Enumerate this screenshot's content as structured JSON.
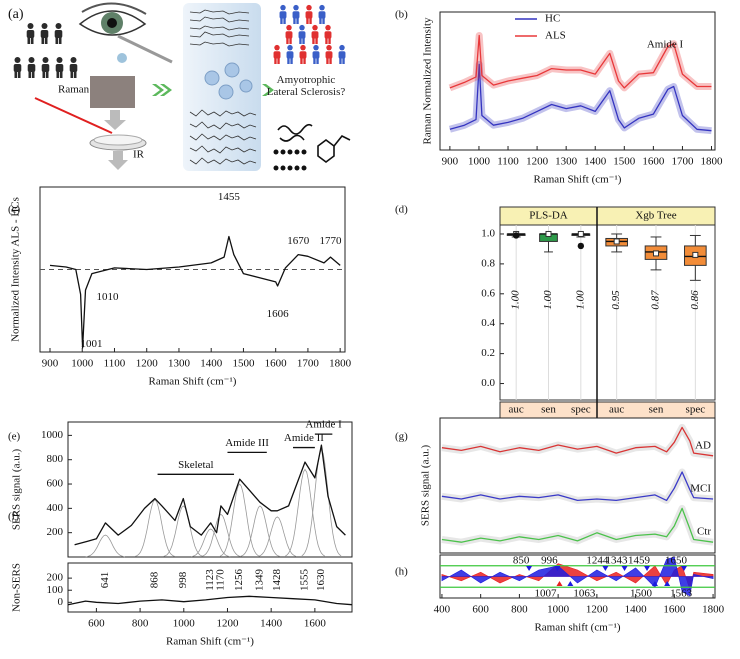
{
  "figure_a": {
    "panel_label": "(a)",
    "raman": "Raman",
    "ir": "IR",
    "question": "Amyotrophic Lateral Sclerosis?"
  },
  "chart_data": [
    {
      "type": "line",
      "panel_label": "(b)",
      "y_label": "Raman Normalized Intensity",
      "x_label": "Raman Shift (cm⁻¹)",
      "x": [
        900,
        950,
        990,
        1001,
        1010,
        1050,
        1100,
        1150,
        1200,
        1250,
        1300,
        1350,
        1400,
        1450,
        1480,
        1500,
        1550,
        1600,
        1650,
        1670,
        1700,
        1750,
        1800
      ],
      "series": [
        {
          "name": "HC",
          "color": "#3434c0",
          "values": [
            1.5,
            1.8,
            2.2,
            6.2,
            2.5,
            1.8,
            2.0,
            2.3,
            2.8,
            3.3,
            3.0,
            3.2,
            2.8,
            4.3,
            2.2,
            1.6,
            2.3,
            2.6,
            4.4,
            4.6,
            2.5,
            1.5,
            1.4
          ]
        },
        {
          "name": "ALS",
          "color": "#e8383a",
          "values": [
            4.5,
            4.9,
            5.3,
            8.3,
            5.4,
            4.7,
            5.0,
            5.2,
            5.4,
            5.9,
            5.8,
            5.8,
            5.5,
            7.0,
            5.0,
            4.5,
            5.5,
            5.6,
            7.5,
            7.7,
            5.5,
            4.6,
            4.6
          ]
        }
      ],
      "xlim": [
        866,
        1812
      ],
      "ylim": [
        0,
        10
      ],
      "xticks": [
        900,
        1000,
        1100,
        1200,
        1300,
        1400,
        1500,
        1600,
        1700,
        1800
      ],
      "legend": "upper left",
      "band": true,
      "annotations": [
        {
          "text": "Amide I",
          "x": 1640,
          "y": 7.6
        }
      ]
    },
    {
      "type": "line",
      "panel_label": "(c)",
      "y_label": "Normalized Intensity ALS - HCs",
      "x_label": "Raman Shift (cm⁻¹)",
      "x": [
        900,
        950,
        980,
        995,
        1001,
        1010,
        1030,
        1100,
        1200,
        1300,
        1400,
        1440,
        1455,
        1470,
        1500,
        1550,
        1600,
        1606,
        1630,
        1670,
        1700,
        1750,
        1770,
        1800
      ],
      "values": [
        0.5,
        0.3,
        0,
        -3,
        -9.5,
        -2.5,
        -0.5,
        0.2,
        0,
        0.3,
        0.8,
        1.5,
        4.0,
        1.8,
        -0.5,
        -1.0,
        -1.5,
        -2.0,
        0.2,
        1.8,
        1.6,
        0.8,
        1.5,
        0.5
      ],
      "color": "#111111",
      "xlim": [
        869,
        1815
      ],
      "ylim": [
        -10,
        10
      ],
      "xticks": [
        900,
        1000,
        1100,
        1200,
        1300,
        1400,
        1500,
        1600,
        1700,
        1800
      ],
      "reference_line": 0,
      "labels": [
        1455,
        1670,
        1770,
        1010,
        1606,
        1001
      ]
    },
    {
      "type": "box",
      "panel_label": "(d)",
      "ylim": [
        -0.11,
        1.06
      ],
      "yticks": [
        {
          "value": 0,
          "label": "0.0"
        },
        0.2,
        0.4,
        0.6,
        0.8,
        {
          "value": 1,
          "label": "1.0"
        }
      ],
      "groups": [
        {
          "name": "PLS-DA",
          "categories": [
            "auc",
            "sen",
            "spec"
          ],
          "values": [
            1.0,
            1.0,
            1.0
          ],
          "value_labels": [
            "1.00",
            "1.00",
            "1.00"
          ],
          "medians": [
            1.0,
            1.0,
            1.0
          ],
          "q1": [
            0.99,
            0.95,
            0.99
          ],
          "q3": [
            1.0,
            1.0,
            1.0
          ],
          "whisker_low": [
            0.98,
            0.88,
            0.98
          ],
          "whisker_high": [
            1.0,
            1.0,
            1.0
          ],
          "outliers": [
            [
              0.99
            ],
            [],
            [
              0.92
            ]
          ],
          "colors": [
            "#1a1a1a",
            "#2e9a4a",
            "#1a1a1a"
          ]
        },
        {
          "name": "Xgb Tree",
          "categories": [
            "auc",
            "sen",
            "spec"
          ],
          "values": [
            0.95,
            0.87,
            0.86
          ],
          "value_labels": [
            "0.95",
            "0.87",
            "0.86"
          ],
          "medians": [
            0.95,
            0.88,
            0.85
          ],
          "q1": [
            0.92,
            0.83,
            0.79
          ],
          "q3": [
            0.97,
            0.92,
            0.92
          ],
          "whisker_low": [
            0.88,
            0.76,
            0.69
          ],
          "whisker_high": [
            1.0,
            0.98,
            0.99
          ],
          "outliers": [
            [],
            [],
            []
          ],
          "colors": [
            "#f28c38",
            "#f28c38",
            "#f28c38"
          ]
        }
      ]
    },
    {
      "type": "line",
      "panel_label": "(e)",
      "y_label": "SERS signal (a.u.)",
      "x": [
        500,
        560,
        600,
        641,
        700,
        760,
        820,
        868,
        900,
        960,
        998,
        1030,
        1080,
        1123,
        1150,
        1170,
        1200,
        1256,
        1300,
        1349,
        1400,
        1428,
        1480,
        1555,
        1600,
        1630,
        1660,
        1700,
        1740
      ],
      "values": [
        100,
        130,
        150,
        280,
        180,
        260,
        400,
        480,
        420,
        300,
        480,
        250,
        180,
        280,
        200,
        420,
        350,
        640,
        550,
        450,
        380,
        380,
        420,
        780,
        650,
        920,
        500,
        250,
        180
      ],
      "color": "#111111",
      "xlim": [
        470,
        1770
      ],
      "ylim": [
        0,
        1110
      ],
      "yticks": [
        200,
        400,
        600,
        800,
        1000
      ],
      "peaks": [
        641,
        868,
        998,
        1123,
        1170,
        1256,
        1349,
        1428,
        1555,
        1630
      ],
      "component_heights": [
        180,
        470,
        420,
        230,
        350,
        600,
        420,
        330,
        720,
        880
      ],
      "component_width": 30,
      "regions": [
        {
          "label": "Skeletal",
          "start": 880,
          "end": 1230,
          "level": 680
        },
        {
          "label": "Amide III",
          "start": 1200,
          "end": 1380,
          "level": 860
        },
        {
          "label": "Amide II",
          "start": 1500,
          "end": 1600,
          "level": 900
        },
        {
          "label": "Amide I",
          "start": 1600,
          "end": 1680,
          "level": 1010
        }
      ]
    },
    {
      "type": "line",
      "panel_label": "(f)",
      "y_label": "Non-SERS",
      "x_label": "Raman Shift (cm⁻¹)",
      "x": [
        470,
        550,
        600,
        700,
        800,
        900,
        1000,
        1100,
        1200,
        1300,
        1400,
        1500,
        1600,
        1700,
        1770
      ],
      "values": [
        -20,
        10,
        0,
        -10,
        10,
        20,
        5,
        20,
        40,
        50,
        40,
        30,
        20,
        -10,
        -20
      ],
      "color": "#111111",
      "xlim": [
        470,
        1770
      ],
      "ylim": [
        -80,
        325
      ],
      "yticks": [
        0,
        100,
        200
      ],
      "xticks": [
        600,
        800,
        1000,
        1200,
        1400,
        1600
      ]
    },
    {
      "type": "line",
      "panel_label": "(g)",
      "y_label": "SERS signal (a.u.)",
      "x": [
        400,
        500,
        600,
        700,
        800,
        900,
        1000,
        1100,
        1200,
        1300,
        1400,
        1500,
        1560,
        1600,
        1640,
        1680,
        1700,
        1800
      ],
      "series": [
        {
          "name": "AD",
          "color": "#d93535",
          "values": [
            7.8,
            7.6,
            7.9,
            7.5,
            7.8,
            7.6,
            8.0,
            7.7,
            7.9,
            7.4,
            7.8,
            7.9,
            7.5,
            8.2,
            9.3,
            8.3,
            7.4,
            7.2
          ]
        },
        {
          "name": "MCI",
          "color": "#3a3ac8",
          "values": [
            4.2,
            4.0,
            4.3,
            4.0,
            4.2,
            4.1,
            4.3,
            3.9,
            4.0,
            3.9,
            4.1,
            4.3,
            3.9,
            4.8,
            6.0,
            4.7,
            4.1,
            4.0
          ]
        },
        {
          "name": "Ctr",
          "color": "#4cc24c",
          "values": [
            1.0,
            0.8,
            1.1,
            0.9,
            1.2,
            1.0,
            1.3,
            0.9,
            1.5,
            1.0,
            1.3,
            1.4,
            1.2,
            2.0,
            3.3,
            1.8,
            1.0,
            0.8
          ]
        }
      ],
      "xlim": [
        390,
        1810
      ],
      "ylim": [
        0,
        10
      ],
      "legend": "inline",
      "band": "#b0b0b0"
    },
    {
      "type": "area",
      "panel_label": "(h)",
      "x_label": "Raman shift (cm⁻¹)",
      "x": [
        400,
        500,
        600,
        700,
        800,
        900,
        1000,
        1100,
        1200,
        1300,
        1400,
        1500,
        1560,
        1600,
        1640,
        1680,
        1700,
        1800
      ],
      "series": [
        {
          "color": "#e82020",
          "values": [
            0.1,
            -0.2,
            0.2,
            -0.3,
            0.1,
            -0.2,
            0.6,
            0.3,
            -0.2,
            0.2,
            -0.3,
            0.5,
            -0.4,
            0.3,
            0.5,
            -0.6,
            0.2,
            0.1
          ]
        },
        {
          "color": "#1c1ce0",
          "values": [
            -0.2,
            0.3,
            -0.3,
            0.2,
            -0.2,
            0.3,
            0.5,
            -0.3,
            0.3,
            -0.2,
            0.4,
            -0.5,
            0.8,
            0.9,
            -0.7,
            -0.9,
            0.1,
            -0.1
          ]
        }
      ],
      "xlim": [
        390,
        1810
      ],
      "ylim": [
        -1,
        1
      ],
      "xticks": [
        400,
        600,
        800,
        1000,
        1200,
        1400,
        1600,
        1800
      ],
      "thresholds": [
        0.5,
        -0.5
      ],
      "threshold_color": "#3ec83e",
      "markers_above": [
        850,
        996,
        1244,
        1343,
        1459,
        1650
      ],
      "markers_below": [
        1007,
        1063,
        1500,
        1563
      ]
    }
  ]
}
